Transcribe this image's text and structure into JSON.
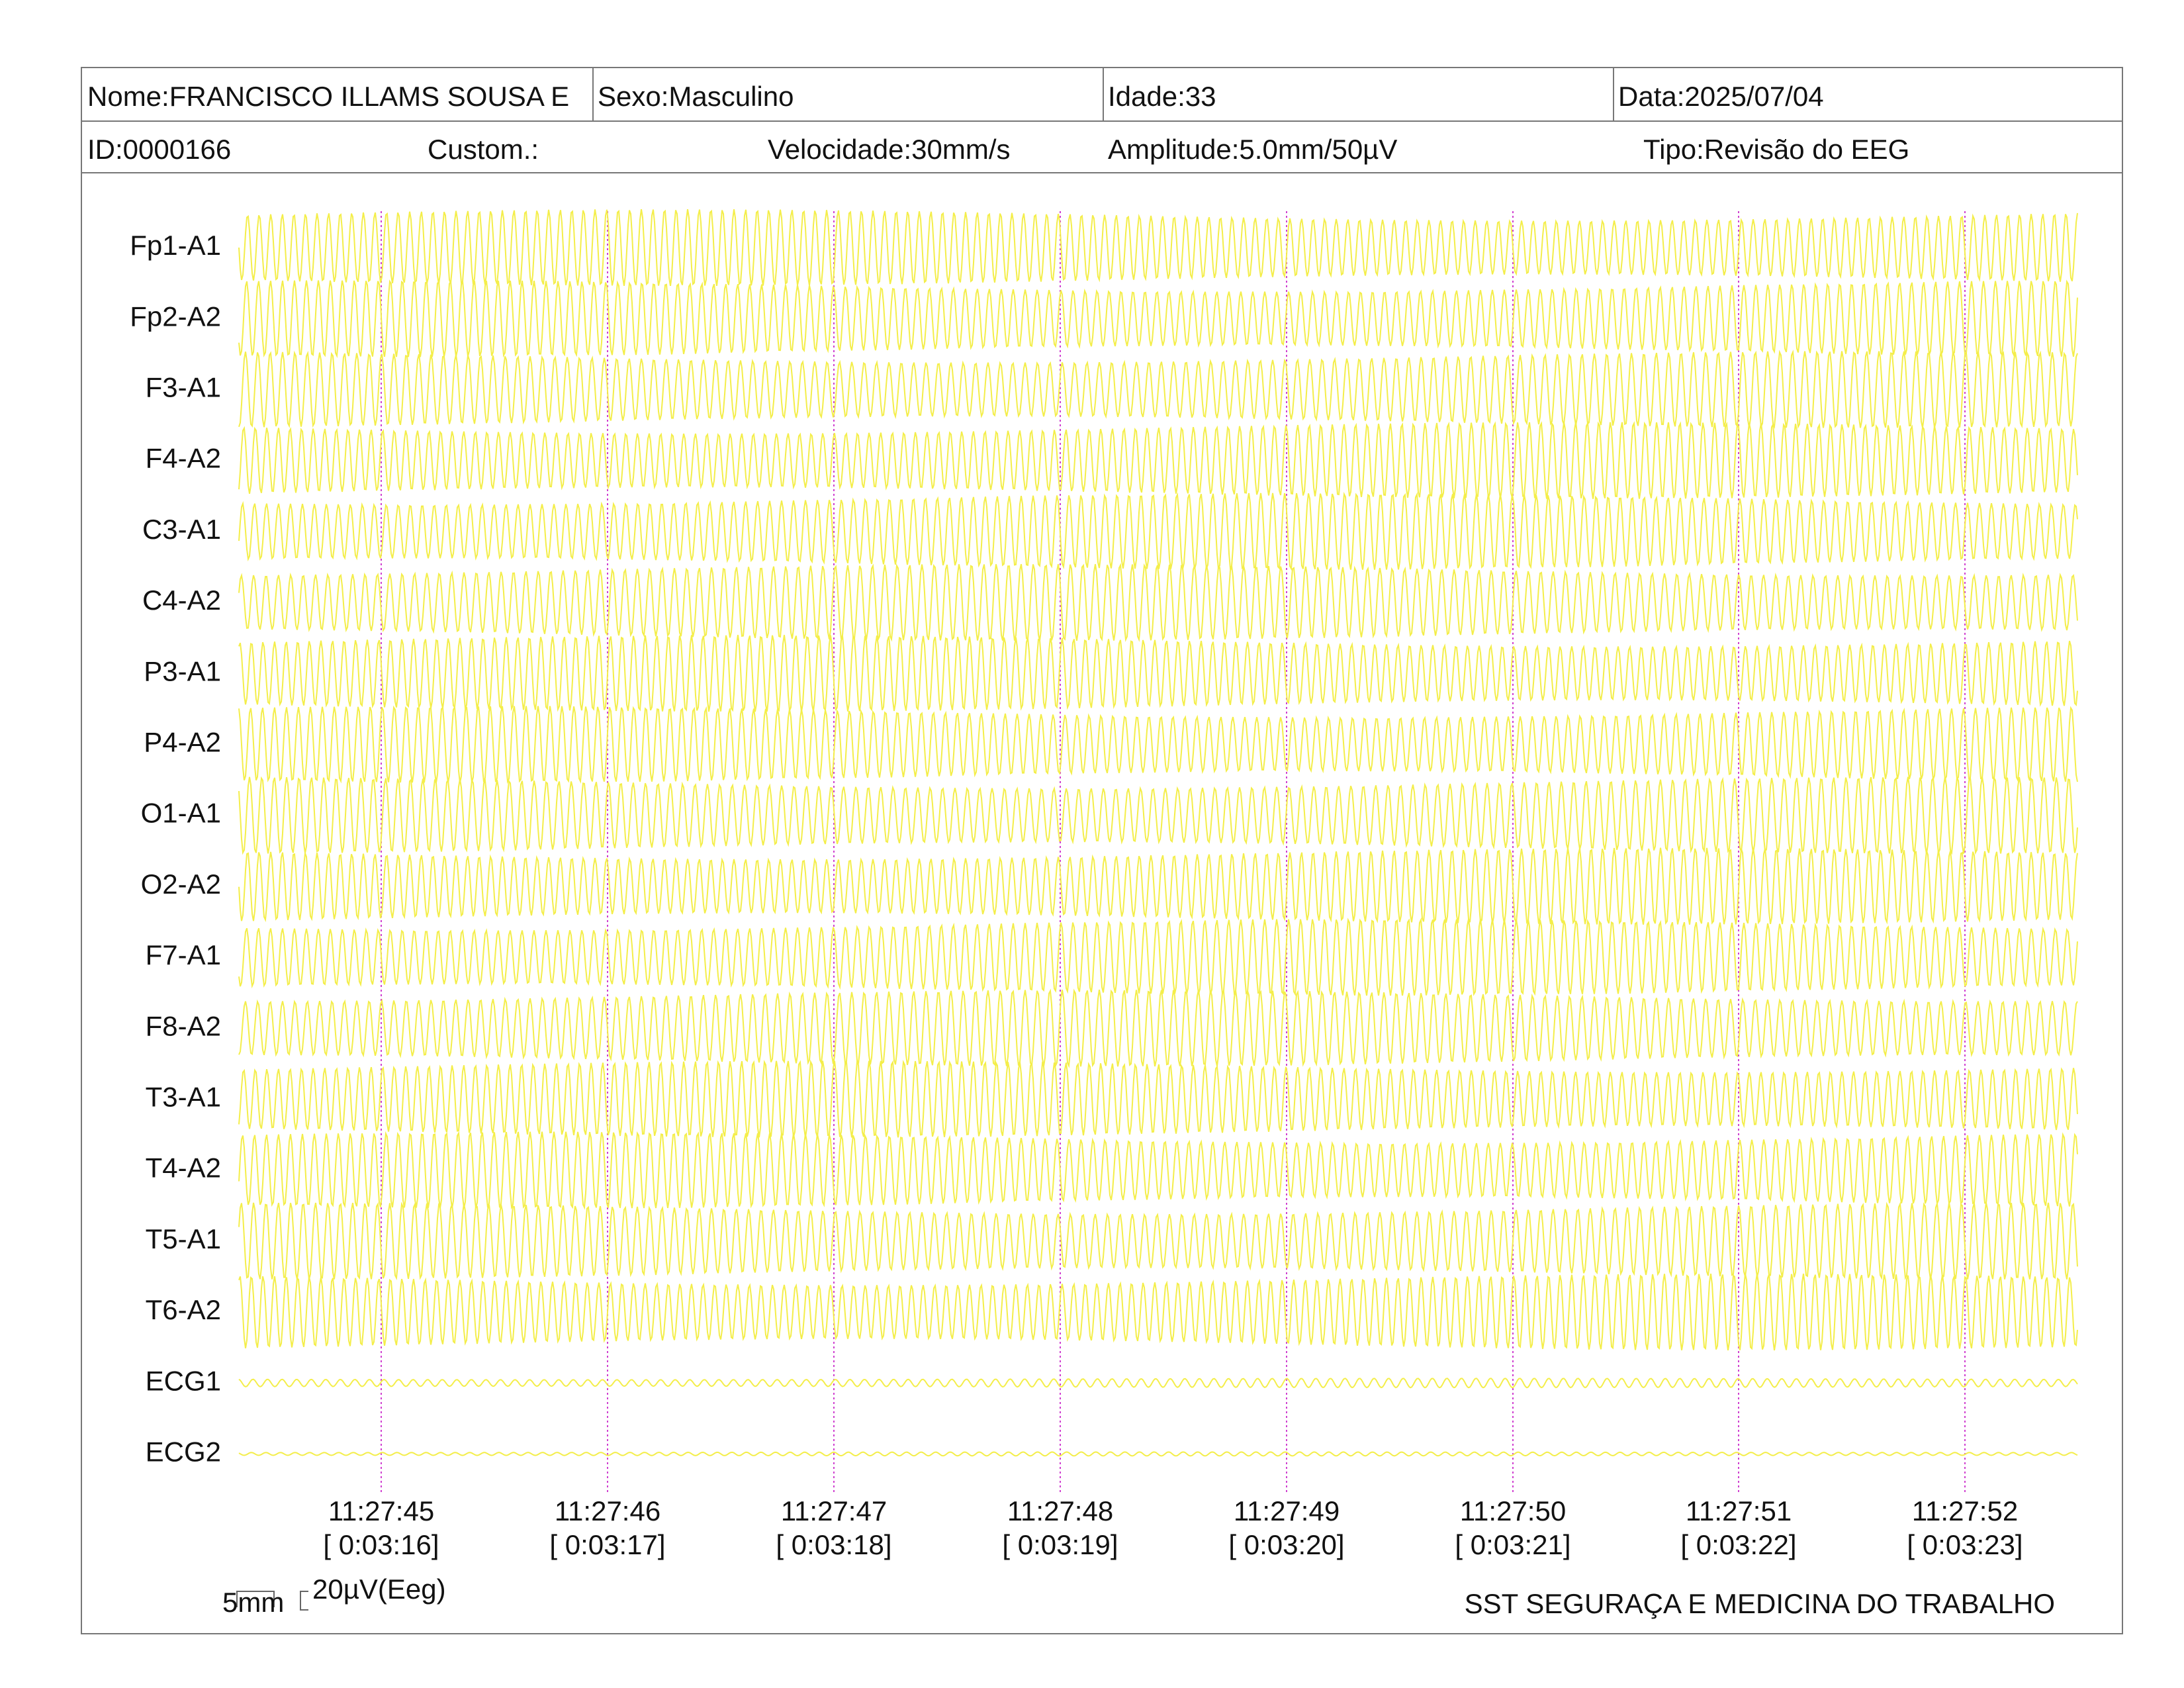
{
  "header": {
    "name": "Nome:FRANCISCO ILLAMS SOUSA E",
    "sex": "Sexo:Masculino",
    "age": "Idade:33",
    "date": "Data:2025/07/04",
    "id": "ID:0000166",
    "custom": "Custom.:",
    "speed": "Velocidade:30mm/s",
    "amplitude": "Amplitude:5.0mm/50µV",
    "type": "Tipo:Revisão do EEG"
  },
  "channels": [
    "Fp1-A1",
    "Fp2-A2",
    "F3-A1",
    "F4-A2",
    "C3-A1",
    "C4-A2",
    "P3-A1",
    "P4-A2",
    "O1-A1",
    "O2-A2",
    "F7-A1",
    "F8-A2",
    "T3-A1",
    "T4-A2",
    "T5-A1",
    "T6-A2",
    "ECG1",
    "ECG2"
  ],
  "time_marks": [
    {
      "clock": "11:27:45",
      "elapsed": "[ 0:03:16]"
    },
    {
      "clock": "11:27:46",
      "elapsed": "[ 0:03:17]"
    },
    {
      "clock": "11:27:47",
      "elapsed": "[ 0:03:18]"
    },
    {
      "clock": "11:27:48",
      "elapsed": "[ 0:03:19]"
    },
    {
      "clock": "11:27:49",
      "elapsed": "[ 0:03:20]"
    },
    {
      "clock": "11:27:50",
      "elapsed": "[ 0:03:21]"
    },
    {
      "clock": "11:27:51",
      "elapsed": "[ 0:03:22]"
    },
    {
      "clock": "11:27:52",
      "elapsed": "[ 0:03:23]"
    }
  ],
  "footer": {
    "scale_time": "5mm",
    "scale_amp": "20µV(Eeg)",
    "company": "SST SEGURAÇA E MEDICINA DO TRABALHO"
  }
}
